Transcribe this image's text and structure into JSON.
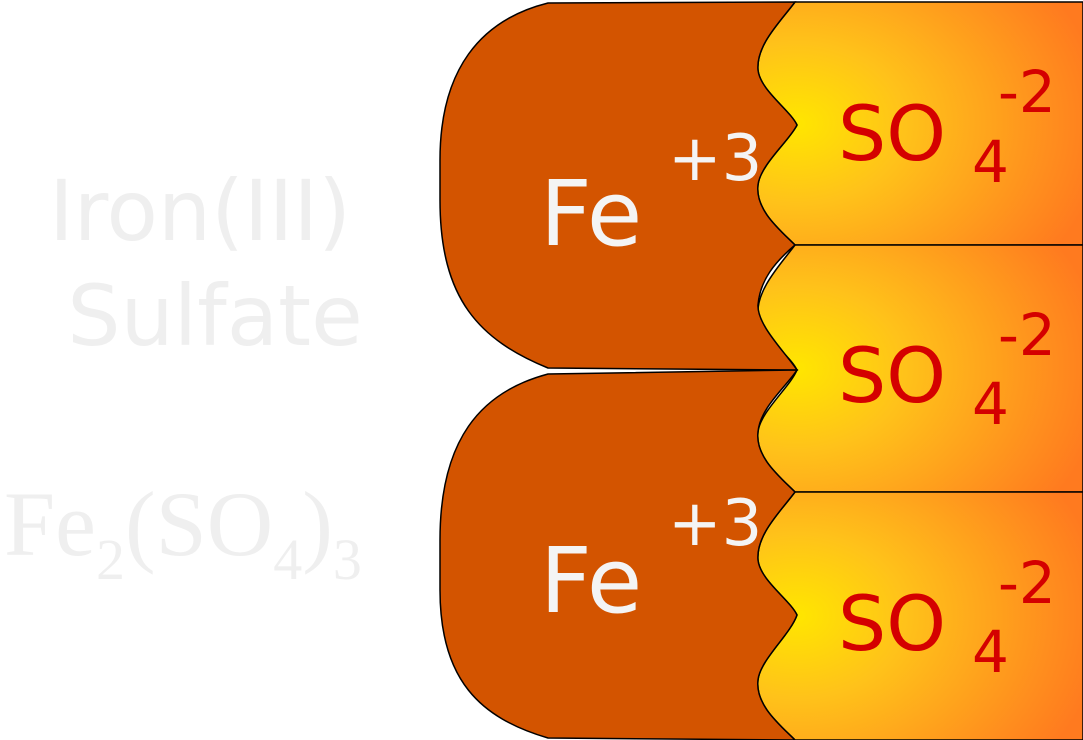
{
  "compound": {
    "name_line1": "Iron(III)",
    "name_line2": "Sulfate",
    "formula": {
      "parts": [
        {
          "text": "Fe",
          "role": "base"
        },
        {
          "text": "2",
          "role": "sub"
        },
        {
          "text": "(SO",
          "role": "base"
        },
        {
          "text": "4",
          "role": "sub"
        },
        {
          "text": ")",
          "role": "base"
        },
        {
          "text": "3",
          "role": "sub"
        }
      ]
    }
  },
  "cations": [
    {
      "symbol": "Fe",
      "charge": "+3"
    },
    {
      "symbol": "Fe",
      "charge": "+3"
    }
  ],
  "anions": [
    {
      "symbol": "SO",
      "subscript": "4",
      "charge": "-2"
    },
    {
      "symbol": "SO",
      "subscript": "4",
      "charge": "-2"
    },
    {
      "symbol": "SO",
      "subscript": "4",
      "charge": "-2"
    }
  ],
  "colors": {
    "cation_fill": "#D35400",
    "anion_gradient_inner": "#FFE600",
    "anion_gradient_outer": "#FF7A1F",
    "anion_text": "#D40000",
    "cation_text": "#F4F4F4",
    "watermark_text": "#EFEFEF",
    "outline": "#000000"
  }
}
